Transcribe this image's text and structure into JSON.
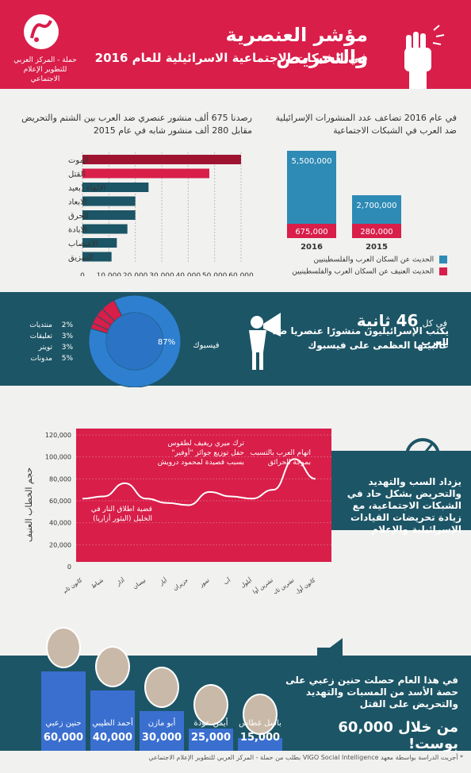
{
  "header": {
    "title": "مؤشر العنصرية والتحريض",
    "subtitle": "في الشبكات الاجتماعية الاسرائيلية للعام 2016",
    "org": "حملة - المركز العربي للتطوير الإعلام الاجتماعي"
  },
  "colors": {
    "red": "#d81e49",
    "teal": "#1c5566",
    "blue": "#2e8bb5",
    "darkred": "#9e1430"
  },
  "chart_data": [
    {
      "type": "bar",
      "title": "في عام 2016 تضاعف عدد المنشورات الإسرائيلية ضد العرب في الشبكات الاجتماعية",
      "categories": [
        "2016",
        "2015"
      ],
      "series": [
        {
          "name": "الحديث عن السكان العرب والفلسطينيين",
          "values": [
            5500000,
            2700000
          ],
          "labels": [
            "5,500,000",
            "2,700,000"
          ]
        },
        {
          "name": "الحديث العنيف عن السكان العرب والفلسطينيين",
          "values": [
            675000,
            280000
          ],
          "labels": [
            "675,000",
            "280,000"
          ]
        }
      ]
    },
    {
      "type": "bar",
      "orientation": "horizontal",
      "title": "رصدنا 675 ألف منشور عنصري ضد العرب بين الشتم والتحريض مقابل 280 ألف منشور شابه في عام 2015",
      "categories": [
        "الموت",
        "القتل",
        "الالقاء (بعيد",
        "الابعاد",
        "الحرق",
        "الابادة",
        "الاغتصاب",
        "التمزيق"
      ],
      "values": [
        60000,
        48000,
        25000,
        20000,
        20000,
        17000,
        13000,
        11000
      ],
      "xticks": [
        "0",
        "10,000",
        "20,000",
        "30,000",
        "40,000",
        "50,000",
        "60,000"
      ],
      "xlim": [
        0,
        60000
      ]
    },
    {
      "type": "pie",
      "title": "يكتب الإسرائيليون منشورًا عنصريا ضد العرب غالبيتها العظمى على فيسبوك",
      "categories": [
        "فيسبوك",
        "منتديات",
        "تعليقات",
        "تويتر",
        "مدونات"
      ],
      "values": [
        87,
        2,
        3,
        3,
        5
      ],
      "labels": [
        "87%",
        "2%",
        "3%",
        "3%",
        "5%"
      ]
    },
    {
      "type": "line",
      "ylabel": "حجم الخطاب العنيف",
      "yticks": [
        "120,000",
        "100,000",
        "80,000",
        "60,000",
        "40,000",
        "20,000",
        "0"
      ],
      "ylim": [
        0,
        120000
      ],
      "x": [
        "كانون ثاني",
        "شباط",
        "آذار",
        "نيسان",
        "أيار",
        "حزيران",
        "تموز",
        "آب",
        "أيلول",
        "تشرين أول",
        "تشرين ثاني",
        "كانون أول"
      ],
      "values": [
        62000,
        64000,
        76000,
        62000,
        58000,
        56000,
        68000,
        64000,
        62000,
        70000,
        98000,
        80000
      ]
    }
  ],
  "sec2": {
    "bar_title": "في عام 2016 تضاعف عدد المنشورات الإسرائيلية ضد العرب في الشبكات الاجتماعية",
    "hbar_title": "رصدنا 675 ألف منشور عنصري ضد العرب بين الشتم والتحريض مقابل 280 ألف منشور شابه في عام 2015"
  },
  "band": {
    "every": "في كل",
    "seconds": "46 ثانية",
    "line1": "يكتب الإسرائيليون منشورًا عنصريا ضد العرب",
    "line2": "غالبيتها العظمى على فيسبوك"
  },
  "timeline": {
    "info": "يزداد السب والتهديد والتحريض بشكل حاد في الشبكات الاجتماعية، مع زيادة تحريضات القيادات الإسرائيلية والإعلام",
    "ann1": "اتهام العرب بالتسبب بموجة الحرائق",
    "ann2": "ترك ميري ريغيف لطقوس حفل توزيع جوائز \"أوفير\" بسبب قصيدة لمحمود درويش",
    "ann3": "قضية اطلاق النار في الخليل (اليئور أزاريا)"
  },
  "people": [
    {
      "name": "حنين زعبي",
      "value": "60,000"
    },
    {
      "name": "أحمد الطيبي",
      "value": "40,000"
    },
    {
      "name": "أبو مازن",
      "value": "30,000"
    },
    {
      "name": "أيمن عودة",
      "value": "25,000"
    },
    {
      "name": "باسل غطاس",
      "value": "15,000"
    }
  ],
  "bottom": {
    "text": "في هذا العام حصلت حنين زعبي على حصة الأسد من المسبات والتهديد والتحريض على القتل",
    "big": "من خلال 60,000 بوست!"
  },
  "footnote": "* أجريت الدراسة بواسطة معهد VIGO Social Intelligence بطلب من حملة - المركز العربي للتطوير الإعلام الاجتماعي"
}
